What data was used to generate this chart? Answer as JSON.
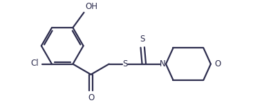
{
  "bg_color": "#ffffff",
  "line_color": "#2d2d4e",
  "line_width": 1.6,
  "font_size": 8.5,
  "figsize": [
    3.66,
    1.49
  ],
  "dpi": 100,
  "xlim": [
    0.0,
    7.5
  ],
  "ylim": [
    0.0,
    3.2
  ]
}
